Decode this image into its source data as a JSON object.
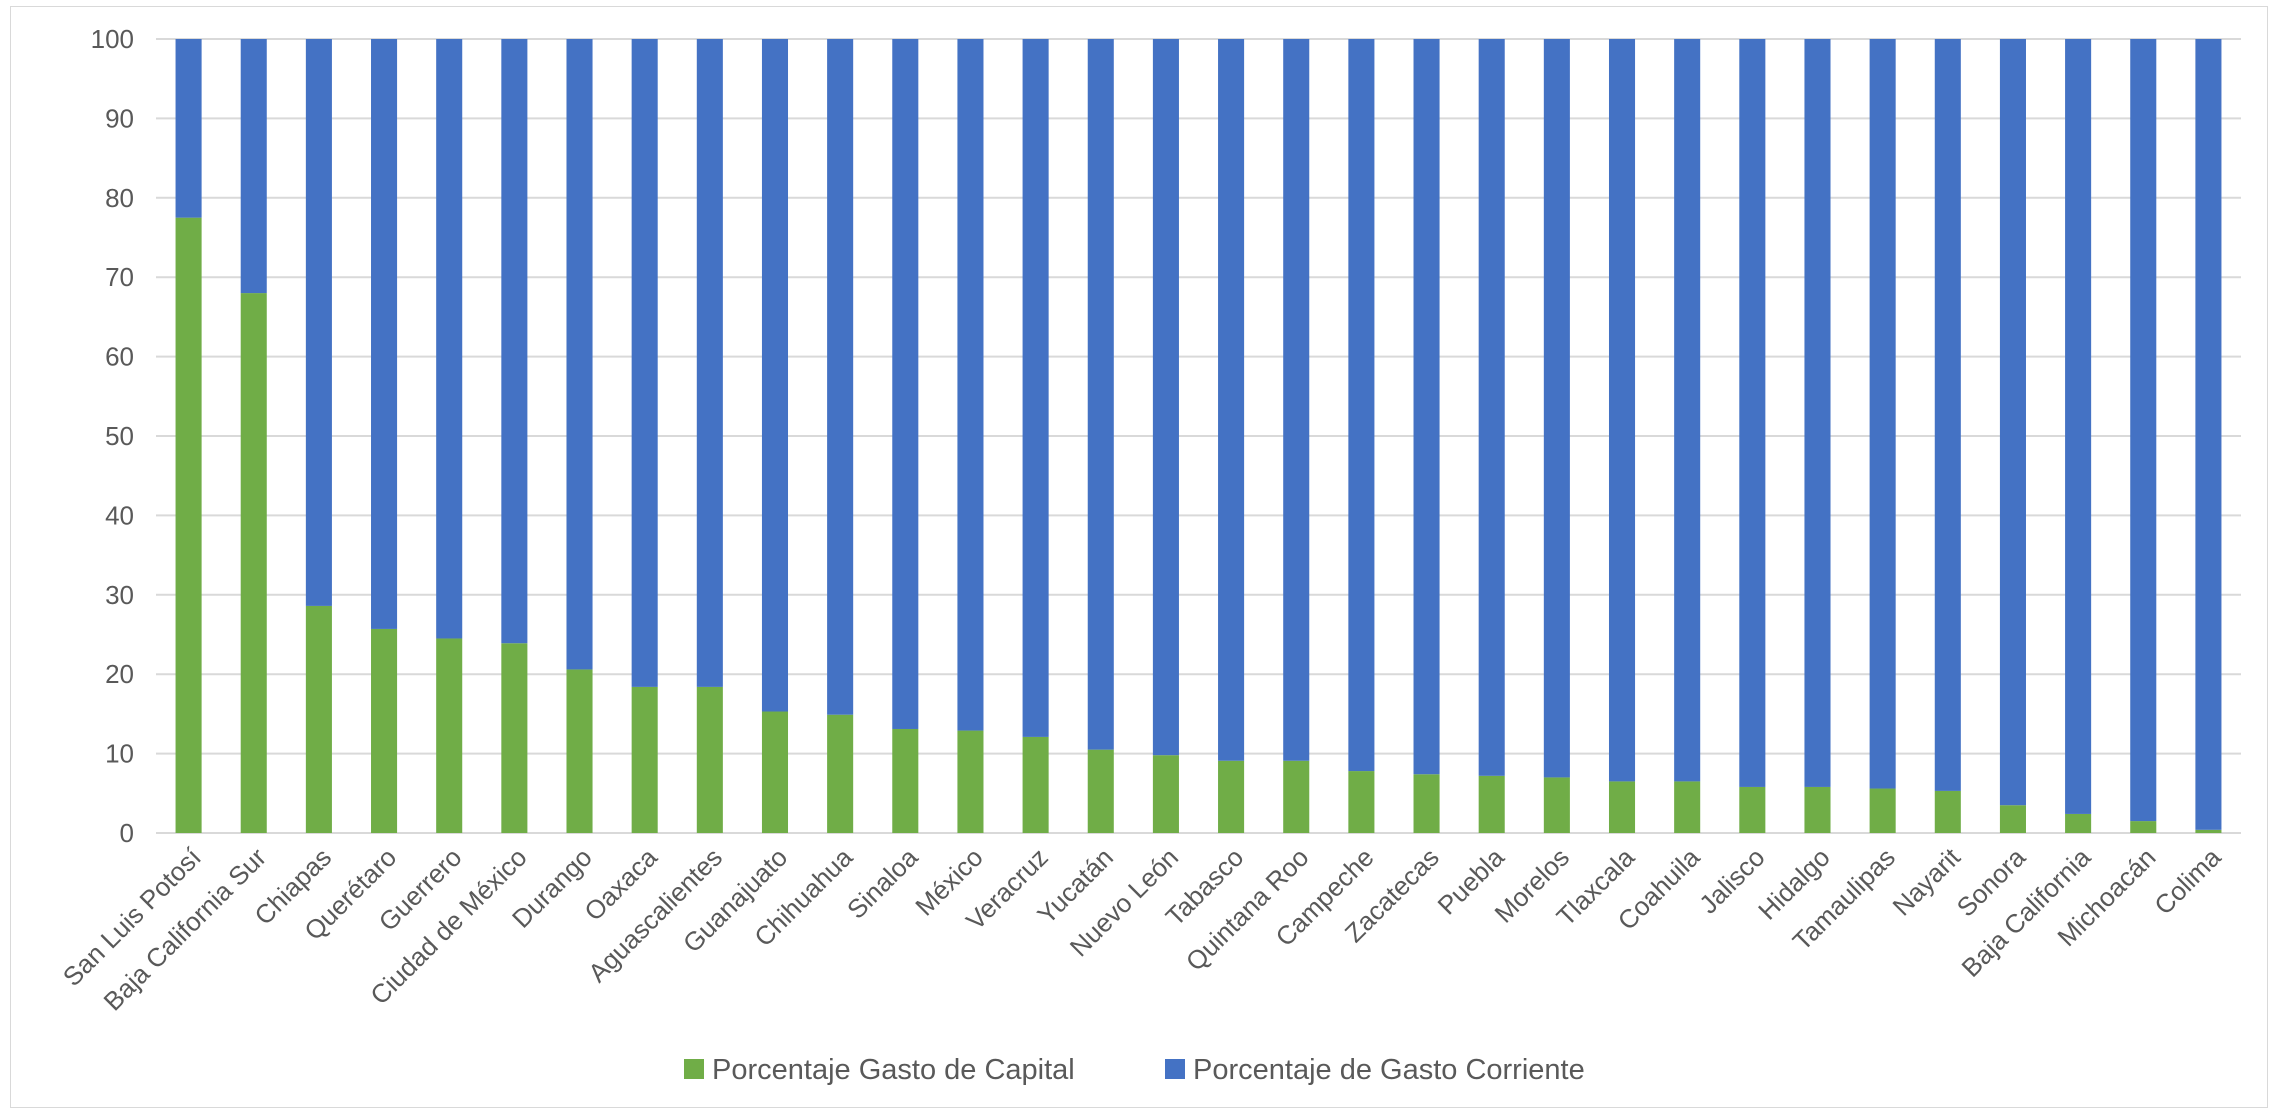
{
  "chart_data": {
    "type": "bar",
    "stacked": true,
    "categories": [
      "San Luis Potosí",
      "Baja California Sur",
      "Chiapas",
      "Querétaro",
      "Guerrero",
      "Ciudad de México",
      "Durango",
      "Oaxaca",
      "Aguascalientes",
      "Guanajuato",
      "Chihuahua",
      "Sinaloa",
      "México",
      "Veracruz",
      "Yucatán",
      "Nuevo León",
      "Tabasco",
      "Quintana Roo",
      "Campeche",
      "Zacatecas",
      "Puebla",
      "Morelos",
      "Tlaxcala",
      "Coahuila",
      "Jalisco",
      "Hidalgo",
      "Tamaulipas",
      "Nayarit",
      "Sonora",
      "Baja California",
      "Michoacán",
      "Colima"
    ],
    "series": [
      {
        "name": "Porcentaje Gasto de Capital",
        "color": "#70ad47",
        "values": [
          77.5,
          68,
          28.6,
          25.7,
          24.5,
          23.9,
          20.6,
          18.4,
          18.4,
          15.3,
          14.9,
          13.1,
          12.9,
          12.1,
          10.5,
          9.8,
          9.1,
          9.1,
          7.8,
          7.4,
          7.2,
          7.0,
          6.5,
          6.5,
          5.8,
          5.8,
          5.6,
          5.3,
          3.5,
          2.4,
          1.5,
          0.4
        ]
      },
      {
        "name": "Porcentaje de Gasto Corriente",
        "color": "#4472c4",
        "values": [
          22.5,
          32,
          71.4,
          74.3,
          75.5,
          76.1,
          79.4,
          81.6,
          81.6,
          84.7,
          85.1,
          86.9,
          87.1,
          87.9,
          89.5,
          90.2,
          90.9,
          90.9,
          92.2,
          92.6,
          92.8,
          93.0,
          93.5,
          93.5,
          94.2,
          94.2,
          94.4,
          94.7,
          96.5,
          97.6,
          98.5,
          99.6
        ]
      }
    ],
    "title": "",
    "xlabel": "",
    "ylabel": "",
    "ylim": [
      0,
      100
    ],
    "yticks": [
      0,
      10,
      20,
      30,
      40,
      50,
      60,
      70,
      80,
      90,
      100
    ],
    "grid": true,
    "legend_position": "bottom",
    "gridline_color": "#d9d9d9",
    "text_color": "#595959"
  }
}
